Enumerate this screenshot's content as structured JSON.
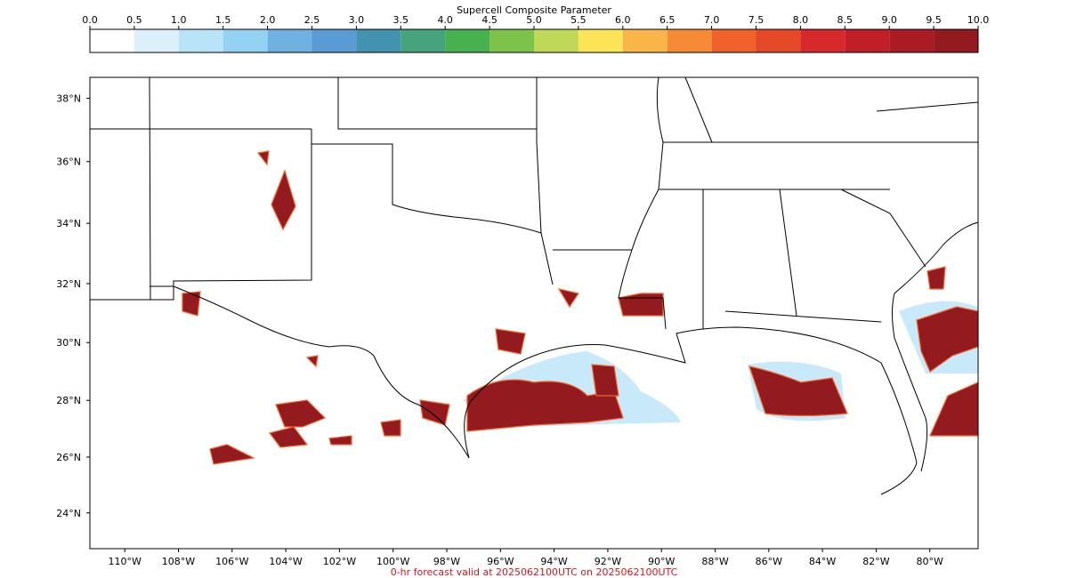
{
  "colorbar": {
    "title": "Supercell Composite Parameter",
    "range": [
      0,
      10
    ],
    "ticks": [
      {
        "value": 0,
        "label": "0.0"
      },
      {
        "value": 0.5,
        "label": "0.5"
      },
      {
        "value": 1,
        "label": "1.0"
      },
      {
        "value": 1.5,
        "label": "1.5"
      },
      {
        "value": 2,
        "label": "2.0"
      },
      {
        "value": 2.5,
        "label": "2.5"
      },
      {
        "value": 3,
        "label": "3.0"
      },
      {
        "value": 3.5,
        "label": "3.5"
      },
      {
        "value": 4,
        "label": "4.0"
      },
      {
        "value": 4.5,
        "label": "4.5"
      },
      {
        "value": 5,
        "label": "5.0"
      },
      {
        "value": 5.5,
        "label": "5.5"
      },
      {
        "value": 6,
        "label": "6.0"
      },
      {
        "value": 6.5,
        "label": "6.5"
      },
      {
        "value": 7,
        "label": "7.0"
      },
      {
        "value": 7.5,
        "label": "7.5"
      },
      {
        "value": 8,
        "label": "8.0"
      },
      {
        "value": 8.5,
        "label": "8.5"
      },
      {
        "value": 9,
        "label": "9.0"
      },
      {
        "value": 9.5,
        "label": "9.5"
      },
      {
        "value": 10,
        "label": "10.0"
      }
    ],
    "colors": [
      "#ffffff",
      "#dcf0fb",
      "#b9e3f7",
      "#95d1f2",
      "#6fb1e0",
      "#5b9bd5",
      "#4393b0",
      "#46a37c",
      "#47b04f",
      "#7dc24a",
      "#c0d858",
      "#fbe456",
      "#f8b548",
      "#f68a35",
      "#f1622b",
      "#e6482a",
      "#d7282a",
      "#c11f27",
      "#a91c23",
      "#931a1f"
    ]
  },
  "map": {
    "projection": "mercator",
    "xlim": [
      -111.3,
      -78.2
    ],
    "ylim": [
      22.7,
      38.65
    ],
    "xticks": [
      {
        "value": -110,
        "label": "110°W"
      },
      {
        "value": -108,
        "label": "108°W"
      },
      {
        "value": -106,
        "label": "106°W"
      },
      {
        "value": -104,
        "label": "104°W"
      },
      {
        "value": -102,
        "label": "102°W"
      },
      {
        "value": -100,
        "label": "100°W"
      },
      {
        "value": -98,
        "label": "98°W"
      },
      {
        "value": -96,
        "label": "96°W"
      },
      {
        "value": -94,
        "label": "94°W"
      },
      {
        "value": -92,
        "label": "92°W"
      },
      {
        "value": -90,
        "label": "90°W"
      },
      {
        "value": -88,
        "label": "88°W"
      },
      {
        "value": -86,
        "label": "86°W"
      },
      {
        "value": -84,
        "label": "84°W"
      },
      {
        "value": -82,
        "label": "82°W"
      },
      {
        "value": -80,
        "label": "80°W"
      }
    ],
    "yticks": [
      {
        "value": 24,
        "label": "24°N"
      },
      {
        "value": 26,
        "label": "26°N"
      },
      {
        "value": 28,
        "label": "28°N"
      },
      {
        "value": 30,
        "label": "30°N"
      },
      {
        "value": 32,
        "label": "32°N"
      },
      {
        "value": 34,
        "label": "34°N"
      },
      {
        "value": 36,
        "label": "36°N"
      },
      {
        "value": 38,
        "label": "38°N"
      }
    ]
  },
  "footer": "0-hr forecast valid at 2025062100UTC on 2025062100UTC"
}
